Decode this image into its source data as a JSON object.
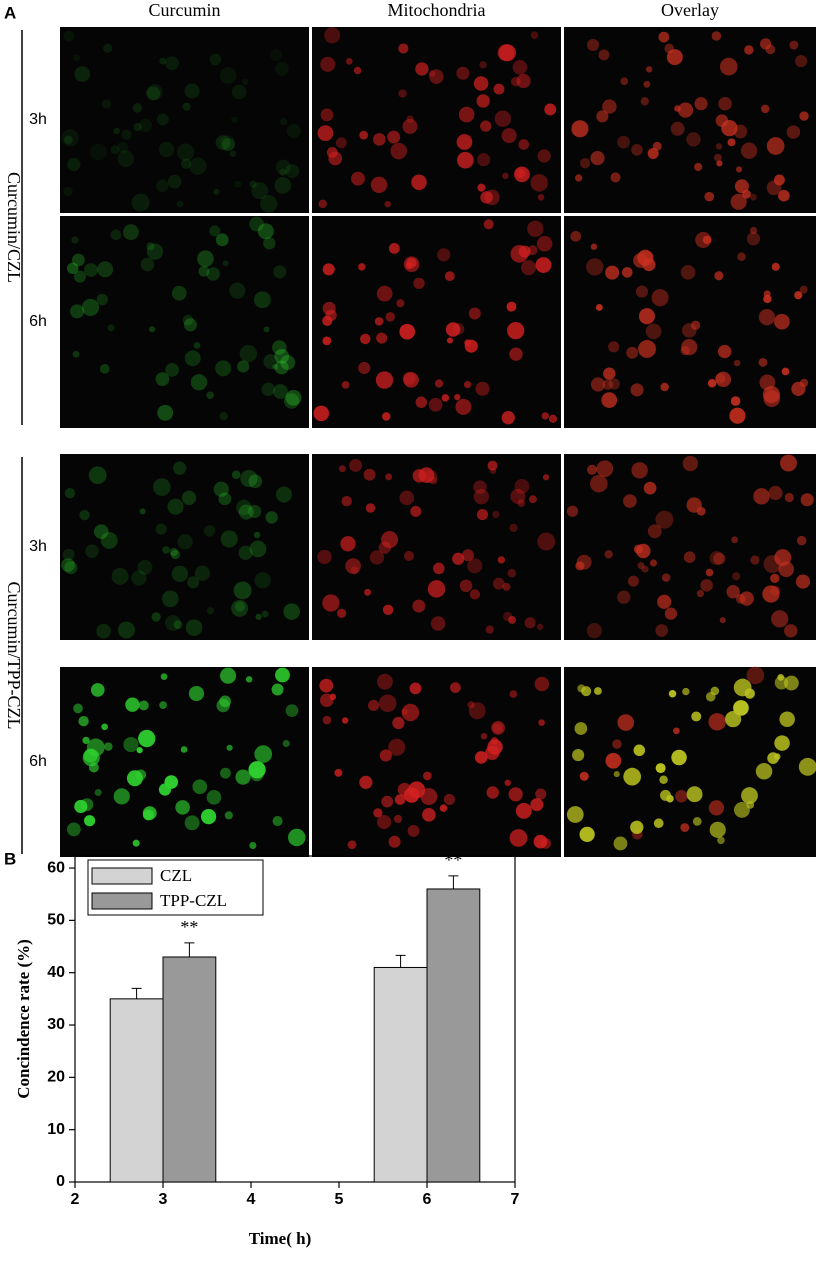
{
  "panel_a": {
    "label": "A",
    "columns": [
      "Curcumin",
      "Mitochondria",
      "Overlay"
    ],
    "groups": [
      {
        "label": "Curcumin/CZL",
        "rows": [
          "3h",
          "6h"
        ]
      },
      {
        "label": "Curcumin/TPP-CZL",
        "rows": [
          "3h",
          "6h"
        ]
      }
    ]
  },
  "chart_data": {
    "panel_label": "B",
    "type": "bar",
    "x_label": "Time( h)",
    "y_label": "Concindence rate (%)",
    "x": [
      3,
      6
    ],
    "series": [
      {
        "name": "CZL",
        "color": "#d3d3d3",
        "values": [
          35,
          41
        ],
        "errors": [
          2,
          2.3
        ]
      },
      {
        "name": "TPP-CZL",
        "color": "#999999",
        "values": [
          43,
          56
        ],
        "errors": [
          2.7,
          2.5
        ],
        "significance": [
          "**",
          "**"
        ]
      }
    ],
    "xlim": [
      2,
      7
    ],
    "xticks": [
      2,
      3,
      4,
      5,
      6,
      7
    ],
    "ylim": [
      0,
      62.3
    ],
    "yticks": [
      0,
      10,
      20,
      30,
      40,
      50,
      60
    ],
    "legend": "upper left"
  }
}
